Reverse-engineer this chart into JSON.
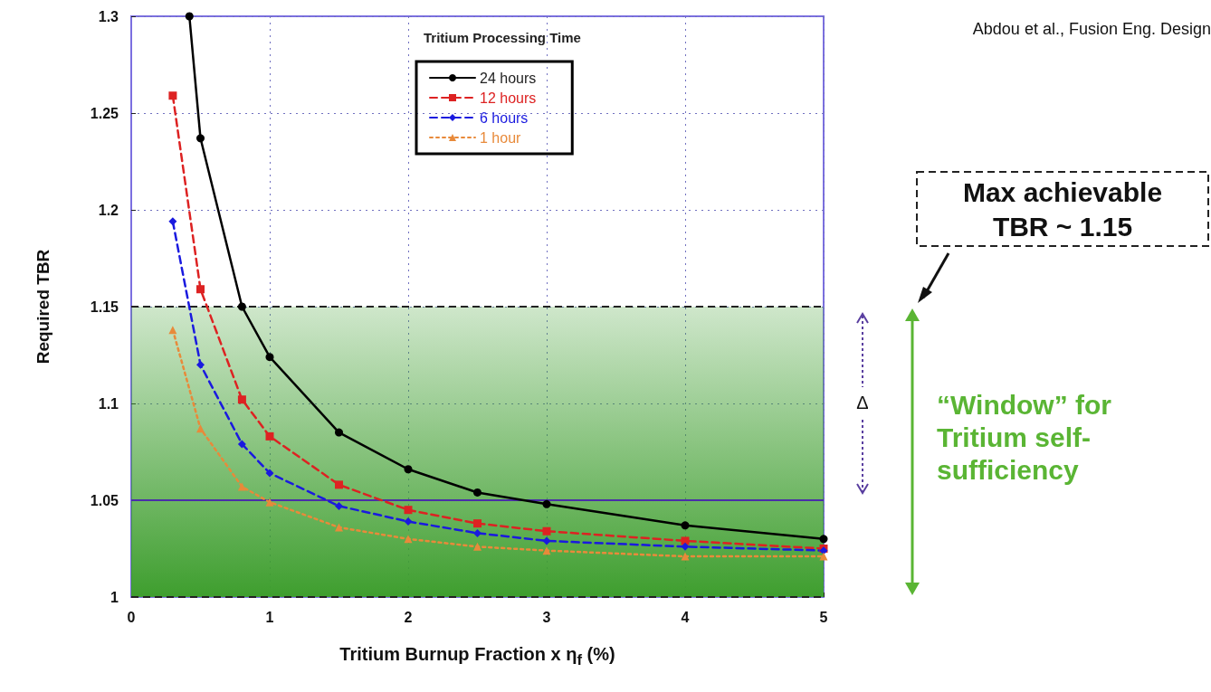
{
  "chart_data": {
    "type": "line",
    "xlabel": "Tritium Burnup Fraction x η$_{f}$ (%)",
    "ylabel": "Required TBR",
    "legend_title": "Tritium Processing Time",
    "legend": "top",
    "grid": true,
    "xlim": [
      0,
      5
    ],
    "xticks": [
      0,
      1,
      2,
      3,
      4,
      5
    ],
    "ylim": [
      1,
      1.3
    ],
    "yticks": [
      1,
      1.05,
      1.1,
      1.15,
      1.2,
      1.25,
      1.3
    ],
    "series": [
      {
        "name": "24 hours",
        "color": "#000000",
        "marker": "circle",
        "line_style": "solid",
        "x": [
          0.42,
          0.5,
          0.8,
          1,
          1.5,
          2,
          2.5,
          3,
          4,
          5
        ],
        "values": [
          1.3,
          1.237,
          1.15,
          1.124,
          1.085,
          1.066,
          1.054,
          1.048,
          1.037,
          1.03
        ]
      },
      {
        "name": "12 hours",
        "color": "#dd2222",
        "marker": "square",
        "line_style": "dashed",
        "x": [
          0.3,
          0.5,
          0.8,
          1,
          1.5,
          2,
          2.5,
          3,
          4,
          5
        ],
        "values": [
          1.259,
          1.159,
          1.102,
          1.083,
          1.058,
          1.045,
          1.038,
          1.034,
          1.029,
          1.025
        ]
      },
      {
        "name": "6 hours",
        "color": "#1a1adf",
        "marker": "diamond",
        "line_style": "dashed",
        "x": [
          0.3,
          0.5,
          0.8,
          1,
          1.5,
          2,
          2.5,
          3,
          4,
          5
        ],
        "values": [
          1.194,
          1.12,
          1.079,
          1.064,
          1.047,
          1.039,
          1.033,
          1.029,
          1.026,
          1.024
        ]
      },
      {
        "name": "1 hour",
        "color": "#e88a3a",
        "marker": "triangle",
        "line_style": "dotted",
        "x": [
          0.3,
          0.5,
          0.8,
          1,
          1.5,
          2,
          2.5,
          3,
          4,
          5
        ],
        "values": [
          1.138,
          1.087,
          1.057,
          1.049,
          1.036,
          1.03,
          1.026,
          1.024,
          1.021,
          1.021
        ]
      }
    ],
    "ref_lines": [
      {
        "axis": "y",
        "value": 1.15,
        "color": "#222222",
        "line_style": "dashed"
      },
      {
        "axis": "y",
        "value": 1.05,
        "color": "#4a2fa8",
        "line_style": "solid"
      },
      {
        "axis": "y",
        "value": 1,
        "color": "#222222",
        "line_style": "dashed"
      }
    ],
    "bands": [
      {
        "axis": "y",
        "from": 1,
        "to": 1.15,
        "color": "#3e9e2e"
      }
    ],
    "annotations": [
      "Abdou et al., Fusion Eng. Design",
      "Max achievable TBR ~ 1.15",
      "Δ",
      "“Window” for Tritium self-sufficiency"
    ]
  }
}
